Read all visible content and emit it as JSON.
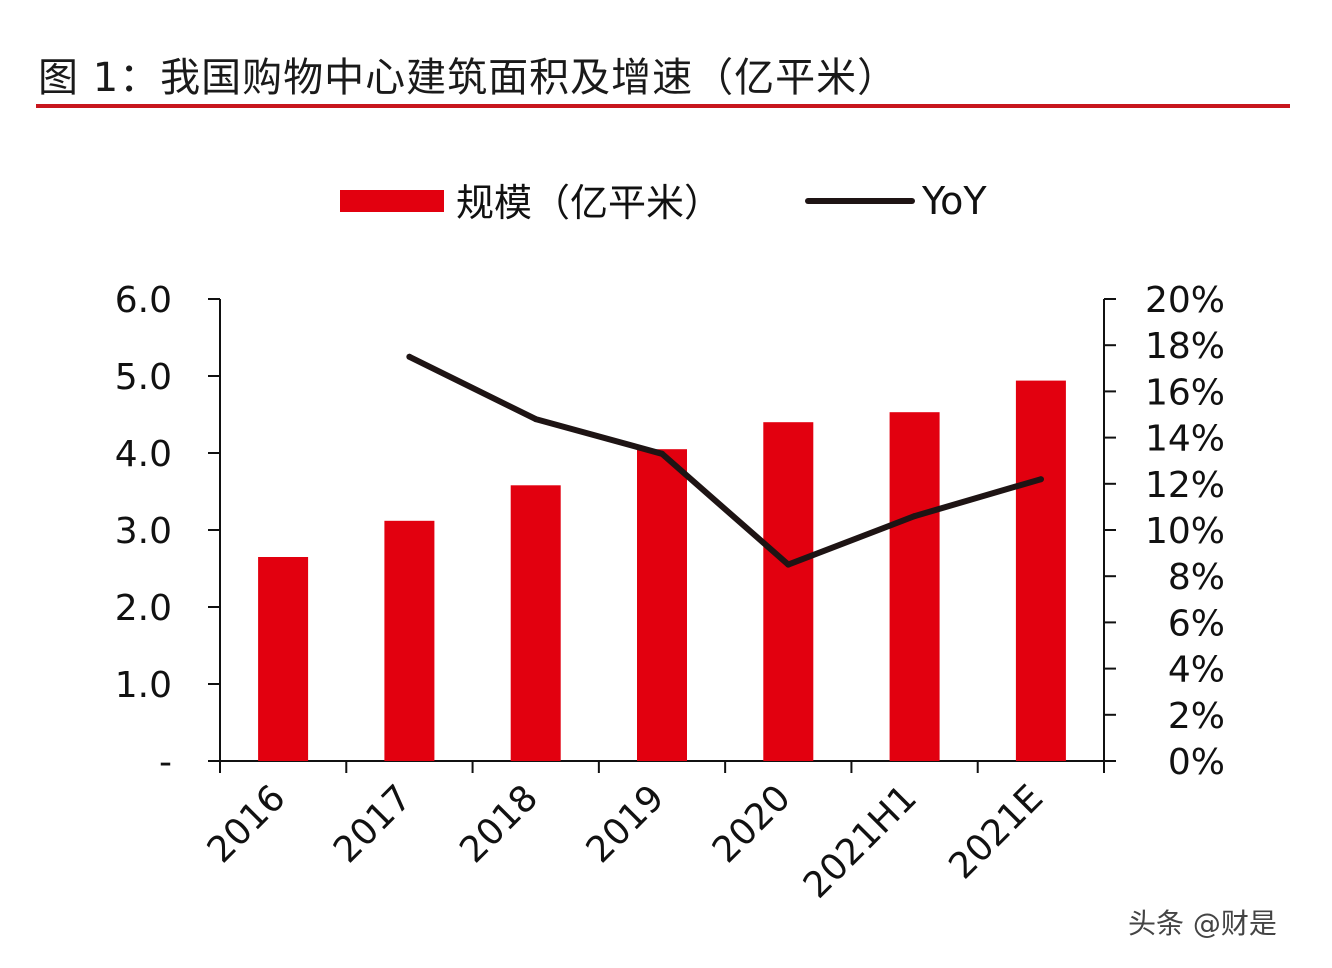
{
  "figure": {
    "title": "图 1：我国购物中心建筑面积及增速（亿平米）",
    "watermark": "头条 @财是"
  },
  "colors": {
    "accent": "#c8161d",
    "bar": "#e2000f",
    "line": "#1e1414",
    "axis": "#111111"
  },
  "chart_data": {
    "type": "bar",
    "categories": [
      "2016",
      "2017",
      "2018",
      "2019",
      "2020",
      "2021H1",
      "2021E"
    ],
    "series": [
      {
        "name": "规模（亿平米）",
        "type": "bar",
        "axis": "left",
        "values": [
          2.65,
          3.12,
          3.58,
          4.05,
          4.4,
          4.53,
          4.94
        ]
      },
      {
        "name": "YoY",
        "type": "line",
        "axis": "right",
        "values": [
          null,
          17.5,
          14.8,
          13.3,
          8.5,
          10.6,
          12.2
        ]
      }
    ],
    "y_left": {
      "ylim": [
        0,
        6
      ],
      "ticks": [
        0,
        1,
        2,
        3,
        4,
        5,
        6
      ],
      "tick_labels": [
        "-",
        "1.0",
        "2.0",
        "3.0",
        "4.0",
        "5.0",
        "6.0"
      ]
    },
    "y_right": {
      "ylim": [
        0,
        20
      ],
      "ticks": [
        0,
        2,
        4,
        6,
        8,
        10,
        12,
        14,
        16,
        18,
        20
      ],
      "tick_labels": [
        "0%",
        "2%",
        "4%",
        "6%",
        "8%",
        "10%",
        "12%",
        "14%",
        "16%",
        "18%",
        "20%"
      ]
    },
    "legend_position": "top-center",
    "grid": false
  }
}
